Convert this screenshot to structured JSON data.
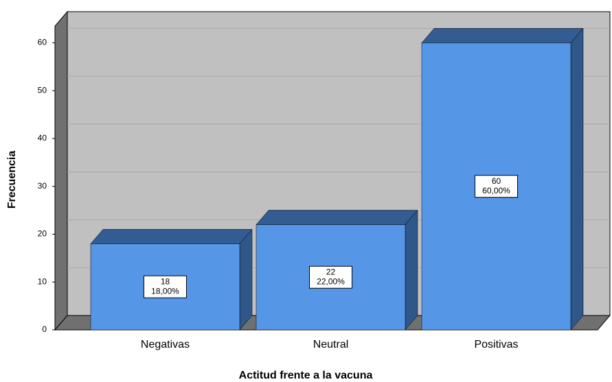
{
  "chart_data": {
    "type": "bar3d",
    "x_label": "Actitud frente a la vacuna",
    "y_label": "Frecuencia",
    "categories": [
      "Negativas",
      "Neutral",
      "Positivas"
    ],
    "values": [
      18,
      22,
      60
    ],
    "percent_labels": [
      "18,00%",
      "22,00%",
      "60,00%"
    ],
    "color": "#5596e6",
    "ylim": [
      0,
      63.5
    ],
    "yticks": [
      0,
      10,
      20,
      30,
      40,
      50,
      60
    ],
    "grid": true
  }
}
